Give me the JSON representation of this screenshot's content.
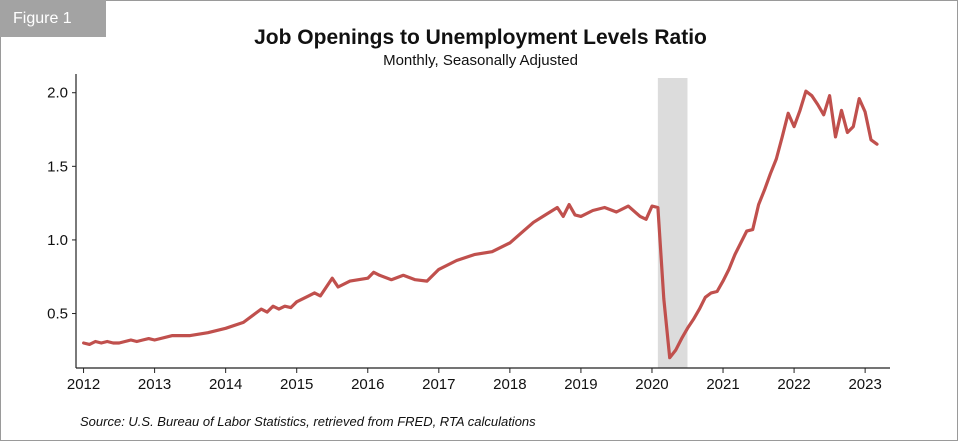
{
  "figure_tag": "Figure 1",
  "chart_data": {
    "type": "line",
    "title": "Job Openings to Unemployment Levels Ratio",
    "subtitle": "Monthly, Seasonally Adjusted",
    "xlabel": "",
    "ylabel": "",
    "xlim": [
      2011.95,
      2023.35
    ],
    "ylim": [
      0.13,
      2.1
    ],
    "xticks": [
      2012,
      2013,
      2014,
      2015,
      2016,
      2017,
      2018,
      2019,
      2020,
      2021,
      2022,
      2023
    ],
    "xtick_labels": [
      "2012",
      "2013",
      "2014",
      "2015",
      "2016",
      "2017",
      "2018",
      "2019",
      "2020",
      "2021",
      "2022",
      "2023"
    ],
    "yticks": [
      0.5,
      1.0,
      1.5,
      2.0
    ],
    "ytick_labels": [
      "0.5",
      "1.0",
      "1.5",
      "2.0"
    ],
    "grid": false,
    "legend": "none",
    "line_color": "#c0504d",
    "recession_color": "#dcdcdc",
    "recession_band": [
      2020.083,
      2020.5
    ],
    "series": [
      {
        "x": [
          2012.0,
          2012.083,
          2012.167,
          2012.25,
          2012.333,
          2012.417,
          2012.5,
          2012.583,
          2012.667,
          2012.75,
          2012.833,
          2012.917,
          2013.0,
          2013.25,
          2013.5,
          2013.75,
          2014.0,
          2014.25,
          2014.417,
          2014.5,
          2014.583,
          2014.667,
          2014.75,
          2014.833,
          2014.917,
          2015.0,
          2015.167,
          2015.25,
          2015.333,
          2015.5,
          2015.583,
          2015.75,
          2016.0,
          2016.083,
          2016.167,
          2016.333,
          2016.5,
          2016.667,
          2016.833,
          2017.0,
          2017.25,
          2017.5,
          2017.75,
          2018.0,
          2018.167,
          2018.333,
          2018.5,
          2018.667,
          2018.75,
          2018.833,
          2018.917,
          2019.0,
          2019.167,
          2019.333,
          2019.5,
          2019.667,
          2019.833,
          2019.917,
          2020.0,
          2020.083,
          2020.167,
          2020.25,
          2020.333,
          2020.417,
          2020.5,
          2020.583,
          2020.667,
          2020.75,
          2020.833,
          2020.917,
          2021.0,
          2021.083,
          2021.167,
          2021.25,
          2021.333,
          2021.417,
          2021.5,
          2021.583,
          2021.667,
          2021.75,
          2021.833,
          2021.917,
          2022.0,
          2022.083,
          2022.167,
          2022.25,
          2022.333,
          2022.417,
          2022.5,
          2022.583,
          2022.667,
          2022.75,
          2022.833,
          2022.917,
          2023.0,
          2023.083,
          2023.167
        ],
        "y": [
          0.3,
          0.29,
          0.31,
          0.3,
          0.31,
          0.3,
          0.3,
          0.31,
          0.32,
          0.31,
          0.32,
          0.33,
          0.32,
          0.35,
          0.35,
          0.37,
          0.4,
          0.44,
          0.5,
          0.53,
          0.51,
          0.55,
          0.53,
          0.55,
          0.54,
          0.58,
          0.62,
          0.64,
          0.62,
          0.74,
          0.68,
          0.72,
          0.74,
          0.78,
          0.76,
          0.73,
          0.76,
          0.73,
          0.72,
          0.8,
          0.86,
          0.9,
          0.92,
          0.98,
          1.05,
          1.12,
          1.17,
          1.22,
          1.16,
          1.24,
          1.17,
          1.16,
          1.2,
          1.22,
          1.19,
          1.23,
          1.16,
          1.14,
          1.23,
          1.22,
          0.6,
          0.2,
          0.25,
          0.33,
          0.4,
          0.46,
          0.53,
          0.61,
          0.64,
          0.65,
          0.72,
          0.8,
          0.9,
          0.98,
          1.06,
          1.07,
          1.24,
          1.34,
          1.45,
          1.55,
          1.7,
          1.86,
          1.77,
          1.88,
          2.01,
          1.98,
          1.92,
          1.85,
          1.98,
          1.7,
          1.88,
          1.73,
          1.77,
          1.96,
          1.87,
          1.68,
          1.65
        ]
      }
    ]
  },
  "source": "Source: U.S. Bureau of Labor Statistics, retrieved from FRED, RTA calculations"
}
